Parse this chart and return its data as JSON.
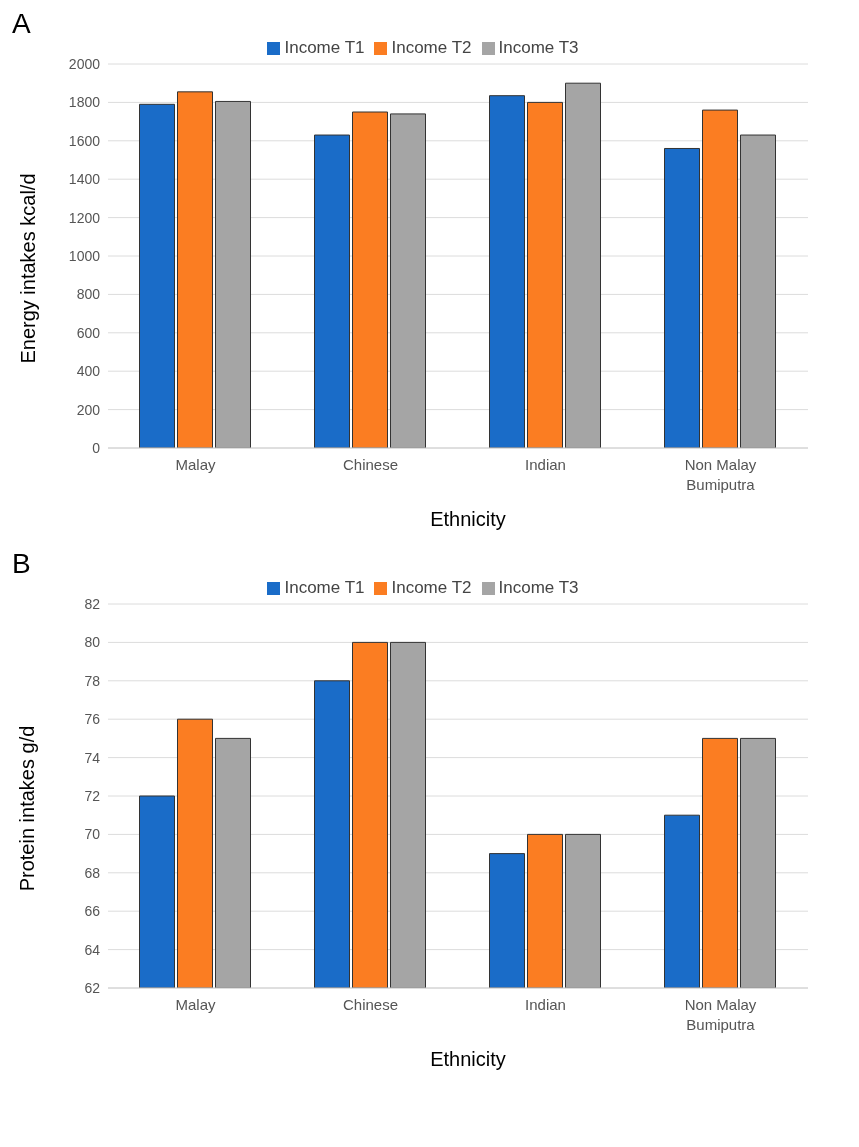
{
  "chart_data": [
    {
      "type": "bar",
      "title": "A",
      "categories": [
        "Malay",
        "Chinese",
        "Indian",
        "Non Malay Bumiputra"
      ],
      "xlabel": "Ethnicity",
      "ylabel": "Energy intakes kcal/d",
      "ylim": [
        0,
        2000
      ],
      "yticks": [
        0,
        200,
        400,
        600,
        800,
        1000,
        1200,
        1400,
        1600,
        1800,
        2000
      ],
      "grid": "y",
      "legend": "top",
      "series": [
        {
          "name": "Income T1",
          "color": "#1a6cc8",
          "values": [
            1790,
            1630,
            1835,
            1560
          ]
        },
        {
          "name": "Income T2",
          "color": "#fb7d22",
          "values": [
            1855,
            1750,
            1800,
            1760
          ]
        },
        {
          "name": "Income T3",
          "color": "#a5a5a5",
          "values": [
            1805,
            1740,
            1900,
            1630
          ]
        }
      ]
    },
    {
      "type": "bar",
      "title": "B",
      "categories": [
        "Malay",
        "Chinese",
        "Indian",
        "Non Malay Bumiputra"
      ],
      "xlabel": "Ethnicity",
      "ylabel": "Protein intakes g/d",
      "ylim": [
        62,
        82
      ],
      "yticks": [
        62,
        64,
        66,
        68,
        70,
        72,
        74,
        76,
        78,
        80,
        82
      ],
      "grid": "y",
      "legend": "top",
      "series": [
        {
          "name": "Income T1",
          "color": "#1a6cc8",
          "values": [
            72,
            78,
            69,
            71
          ]
        },
        {
          "name": "Income T2",
          "color": "#fb7d22",
          "values": [
            76,
            80,
            70,
            75
          ]
        },
        {
          "name": "Income T3",
          "color": "#a5a5a5",
          "values": [
            75,
            80,
            70,
            75
          ]
        }
      ]
    }
  ]
}
